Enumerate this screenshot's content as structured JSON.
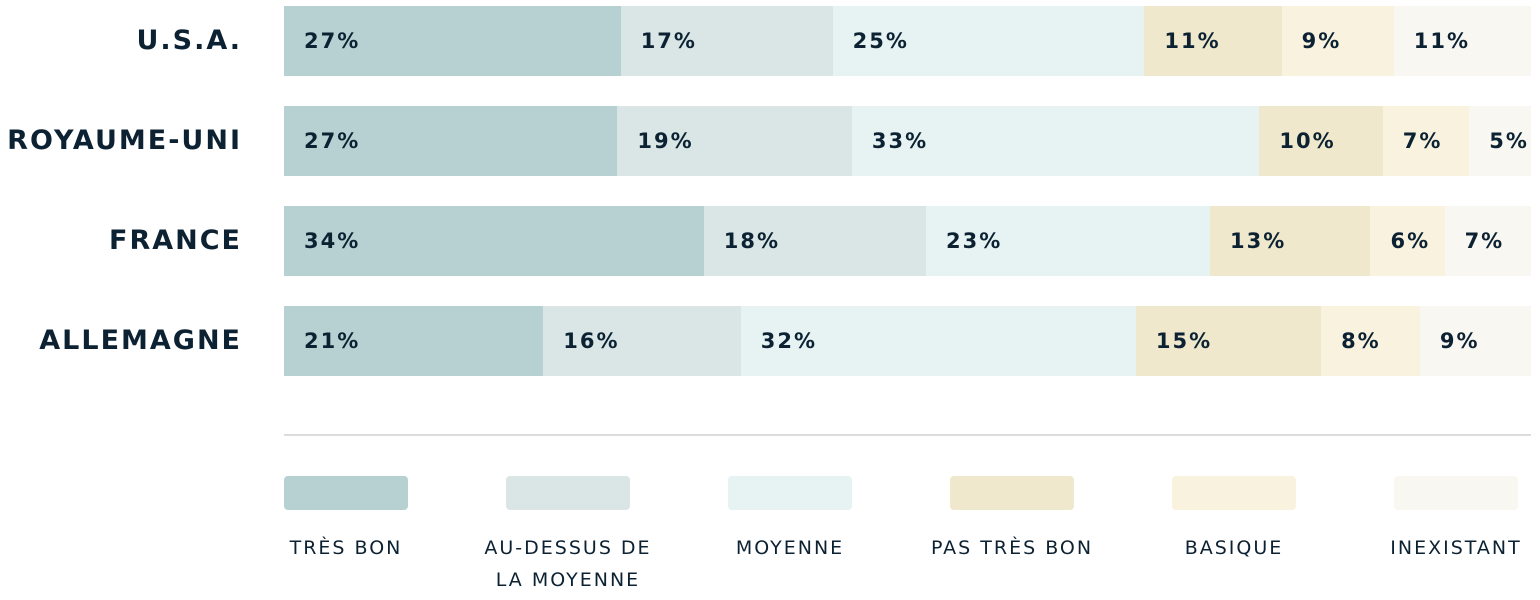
{
  "chart_data": {
    "type": "bar",
    "orientation": "horizontal",
    "stacked": true,
    "categories": [
      "U.S.A.",
      "ROYAUME-UNI",
      "FRANCE",
      "ALLEMAGNE"
    ],
    "series": [
      {
        "name": "TRÈS BON",
        "color": "#b7d1d2",
        "values": [
          27,
          27,
          34,
          21
        ]
      },
      {
        "name": "AU-DESSUS DE LA MOYENNE",
        "color": "#d9e6e5",
        "values": [
          17,
          19,
          18,
          16
        ]
      },
      {
        "name": "MOYENNE",
        "color": "#e7f2f2",
        "values": [
          25,
          33,
          23,
          32
        ]
      },
      {
        "name": "PAS TRÈS BON",
        "color": "#efe8cc",
        "values": [
          11,
          10,
          13,
          15
        ]
      },
      {
        "name": "BASIQUE",
        "color": "#f8f2de",
        "values": [
          9,
          7,
          6,
          8
        ]
      },
      {
        "name": "INEXISTANT",
        "color": "#f8f7f2",
        "values": [
          11,
          5,
          7,
          9
        ]
      }
    ],
    "value_suffix": "%",
    "legend_position": "bottom",
    "grid": false
  }
}
